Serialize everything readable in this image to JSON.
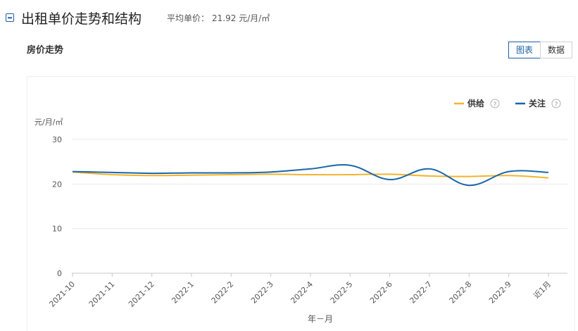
{
  "header": {
    "title": "出租单价走势和结构",
    "avg_label": "平均单价：",
    "avg_value": "21.92 元/月/㎡"
  },
  "subtitle": "房价走势",
  "toggle": [
    {
      "label": "图表",
      "active": true
    },
    {
      "label": "数据",
      "active": false
    }
  ],
  "colors": {
    "supply": "#f2b42e",
    "attention": "#1a66a8",
    "grid": "#e8e8e8",
    "axis": "#c8c8c8"
  },
  "chart_data": {
    "type": "line",
    "title": "",
    "ylabel": "元/月/㎡",
    "xlabel": "年－月",
    "ylim": [
      0,
      30
    ],
    "yticks": [
      0,
      10,
      20,
      30
    ],
    "categories": [
      "2021-10",
      "2021-11",
      "2021-12",
      "2022-1",
      "2022-2",
      "2022-3",
      "2022-4",
      "2022-5",
      "2022-6",
      "2022-7",
      "2022-8",
      "2022-9",
      "近1月"
    ],
    "legend_position": "top-right",
    "series": [
      {
        "name": "供给",
        "color": "#f2b42e",
        "values": [
          22.7,
          22.1,
          21.9,
          22.0,
          22.1,
          22.2,
          22.1,
          22.1,
          22.2,
          21.8,
          21.7,
          21.9,
          21.4
        ]
      },
      {
        "name": "关注",
        "color": "#1a66a8",
        "values": [
          22.8,
          22.6,
          22.4,
          22.5,
          22.5,
          22.7,
          23.4,
          24.2,
          21.0,
          23.4,
          19.7,
          22.8,
          22.6
        ]
      }
    ]
  }
}
